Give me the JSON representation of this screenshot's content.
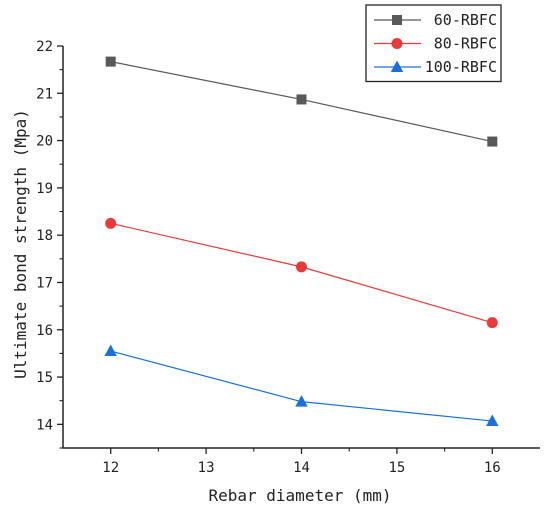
{
  "chart_data": {
    "type": "line",
    "title": "",
    "xlabel": "Rebar diameter (mm)",
    "ylabel": "Ultimate bond strength (Mpa)",
    "xlim": [
      11.5,
      16.5
    ],
    "ylim": [
      13.5,
      22.0
    ],
    "x_ticks": [
      "12",
      "13",
      "14",
      "15",
      "16"
    ],
    "y_ticks": [
      "14",
      "15",
      "16",
      "17",
      "18",
      "19",
      "20",
      "21",
      "22"
    ],
    "grid": false,
    "legend_position": "top-right",
    "series": [
      {
        "name": "60-RBFC",
        "marker": "square",
        "color": "#595959",
        "x": [
          12,
          14,
          16
        ],
        "y": [
          21.67,
          20.87,
          19.98
        ]
      },
      {
        "name": "80-RBFC",
        "marker": "circle",
        "color": "#e8393b",
        "x": [
          12,
          14,
          16
        ],
        "y": [
          18.25,
          17.33,
          16.15
        ]
      },
      {
        "name": "100-RBFC",
        "marker": "triangle",
        "color": "#1a6fd9",
        "x": [
          12,
          14,
          16
        ],
        "y": [
          15.55,
          14.48,
          14.07
        ]
      }
    ]
  }
}
